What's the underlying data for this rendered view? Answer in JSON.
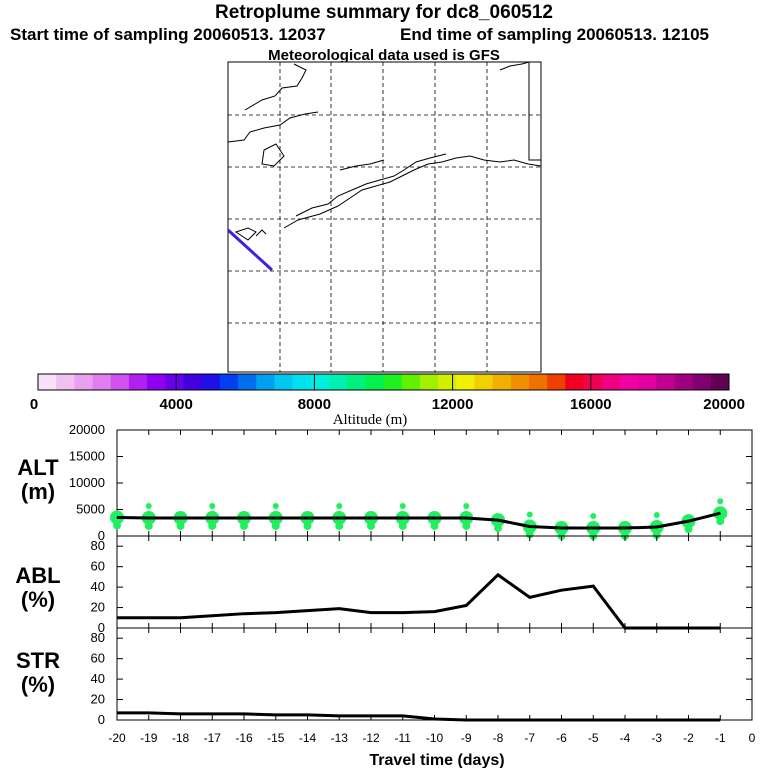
{
  "header": {
    "title": "Retroplume summary for dc8_060512",
    "start": "Start time of sampling 20060513. 12037",
    "end": "End time of sampling 20060513. 12105",
    "met": "Meteorological data used is GFS"
  },
  "colorbar": {
    "label": "Altitude (m)",
    "ticks": [
      "0",
      "4000",
      "8000",
      "12000",
      "16000",
      "20000"
    ],
    "colors": [
      "#f8e0f8",
      "#f0c0f0",
      "#e8a0f0",
      "#e080f0",
      "#d050f0",
      "#b020f0",
      "#9000f0",
      "#6800e8",
      "#4000e0",
      "#2010e8",
      "#0040f0",
      "#0070f0",
      "#00a0f0",
      "#00c8f0",
      "#00e0f0",
      "#00f0e0",
      "#00f0b0",
      "#00f080",
      "#00f050",
      "#20f020",
      "#60f000",
      "#a0f000",
      "#d0f000",
      "#f0f000",
      "#f0d000",
      "#f0b000",
      "#f09000",
      "#f07000",
      "#f04000",
      "#f00020",
      "#f00050",
      "#f00080",
      "#f000a0",
      "#e000a0",
      "#c00090",
      "#a00080",
      "#800070",
      "#600050"
    ]
  },
  "panels": {
    "alt": {
      "label": "ALT",
      "unit": "(m)",
      "yticks": [
        "0",
        "5000",
        "10000",
        "15000",
        "20000"
      ]
    },
    "abl": {
      "label": "ABL",
      "unit": "(%)",
      "yticks": [
        "0",
        "20",
        "40",
        "60",
        "80"
      ]
    },
    "str": {
      "label": "STR",
      "unit": "(%)",
      "yticks": [
        "0",
        "20",
        "40",
        "60",
        "80"
      ]
    }
  },
  "chart_data": [
    {
      "type": "line",
      "title": "ALT (m)",
      "xlabel": "Travel time (days)",
      "ylabel": "ALT (m)",
      "xlim": [
        -20,
        0
      ],
      "ylim": [
        0,
        20000
      ],
      "x": [
        -20,
        -19,
        -18,
        -17,
        -16,
        -15,
        -14,
        -13,
        -12,
        -11,
        -10,
        -9,
        -8,
        -7,
        -6,
        -5,
        -4,
        -3,
        -2,
        -1
      ],
      "values": [
        3500,
        3400,
        3400,
        3400,
        3400,
        3400,
        3400,
        3400,
        3400,
        3400,
        3400,
        3400,
        3000,
        1800,
        1500,
        1500,
        1500,
        1700,
        2800,
        4300
      ],
      "color": "#20f060"
    },
    {
      "type": "line",
      "title": "ABL (%)",
      "ylabel": "ABL (%)",
      "xlim": [
        -20,
        0
      ],
      "ylim": [
        0,
        90
      ],
      "x": [
        -20,
        -19,
        -18,
        -17,
        -16,
        -15,
        -14,
        -13,
        -12,
        -11,
        -10,
        -9,
        -8,
        -7,
        -6,
        -5,
        -4,
        -3,
        -2,
        -1
      ],
      "values": [
        10,
        10,
        10,
        12,
        14,
        15,
        17,
        19,
        15,
        15,
        16,
        22,
        52,
        30,
        37,
        41,
        0,
        0,
        0,
        0
      ]
    },
    {
      "type": "line",
      "title": "STR (%)",
      "xlabel": "Travel time (days)",
      "ylabel": "STR (%)",
      "xlim": [
        -20,
        0
      ],
      "ylim": [
        0,
        90
      ],
      "x": [
        -20,
        -19,
        -18,
        -17,
        -16,
        -15,
        -14,
        -13,
        -12,
        -11,
        -10,
        -9,
        -8,
        -7,
        -6,
        -5,
        -4,
        -3,
        -2,
        -1
      ],
      "values": [
        7,
        7,
        6,
        6,
        6,
        5,
        5,
        4,
        4,
        4,
        1,
        0,
        0,
        0,
        0,
        0,
        0,
        0,
        0,
        0
      ],
      "xticks": [
        "-20",
        "-19",
        "-18",
        "-17",
        "-16",
        "-15",
        "-14",
        "-13",
        "-12",
        "-11",
        "-10",
        "-9",
        "-8",
        "-7",
        "-6",
        "-5",
        "-4",
        "-3",
        "-2",
        "-1",
        "0"
      ]
    }
  ],
  "axis": {
    "xlabel": "Travel time (days)"
  }
}
